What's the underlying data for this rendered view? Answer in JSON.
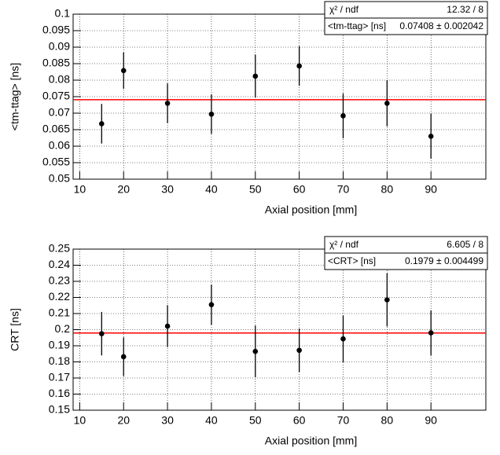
{
  "chart_data": [
    {
      "type": "errorbar",
      "xlabel": "Axial position [mm]",
      "ylabel": "<tm-ttag> [ns]",
      "x": [
        15,
        20,
        30,
        40,
        50,
        60,
        70,
        80,
        90
      ],
      "values": [
        0.0668,
        0.0829,
        0.073,
        0.0697,
        0.0812,
        0.0843,
        0.0692,
        0.073,
        0.063
      ],
      "errors": [
        0.006,
        0.0055,
        0.006,
        0.006,
        0.0065,
        0.006,
        0.0068,
        0.007,
        0.0068
      ],
      "color": "#000000",
      "fit_color": "#ff0000",
      "xlim": [
        8.5,
        102.5
      ],
      "xticks": [
        10,
        20,
        30,
        40,
        50,
        60,
        70,
        80,
        90
      ],
      "ylim": [
        0.05,
        0.1
      ],
      "yticks": [
        0.05,
        0.055,
        0.06,
        0.065,
        0.07,
        0.075,
        0.08,
        0.085,
        0.09,
        0.095,
        0.1
      ],
      "grid": true,
      "stats": {
        "chi2_label": "χ² / ndf",
        "chi2": "12.32 / 8",
        "param_label": "<tm-ttag> [ns]",
        "fit": 0.07408,
        "fit_error": 0.002042,
        "fit_label": "0.07408 ± 0.002042"
      }
    },
    {
      "type": "errorbar",
      "xlabel": "Axial position [mm]",
      "ylabel": "CRT [ns]",
      "x": [
        15,
        20,
        30,
        40,
        50,
        60,
        70,
        80,
        90
      ],
      "values": [
        0.1975,
        0.1832,
        0.2022,
        0.2155,
        0.1865,
        0.1872,
        0.1943,
        0.2185,
        0.198
      ],
      "errors": [
        0.0135,
        0.012,
        0.013,
        0.0125,
        0.016,
        0.0135,
        0.0145,
        0.0165,
        0.014
      ],
      "color": "#000000",
      "fit_color": "#ff0000",
      "xlim": [
        8.5,
        102.5
      ],
      "xticks": [
        10,
        20,
        30,
        40,
        50,
        60,
        70,
        80,
        90
      ],
      "ylim": [
        0.15,
        0.25
      ],
      "yticks": [
        0.15,
        0.16,
        0.17,
        0.18,
        0.19,
        0.2,
        0.21,
        0.22,
        0.23,
        0.24,
        0.25
      ],
      "grid": true,
      "stats": {
        "chi2_label": "χ² / ndf",
        "chi2": "6.605 / 8",
        "param_label": "<CRT> [ns]",
        "fit": 0.1979,
        "fit_error": 0.004499,
        "fit_label": "0.1979 ± 0.004499"
      }
    }
  ]
}
